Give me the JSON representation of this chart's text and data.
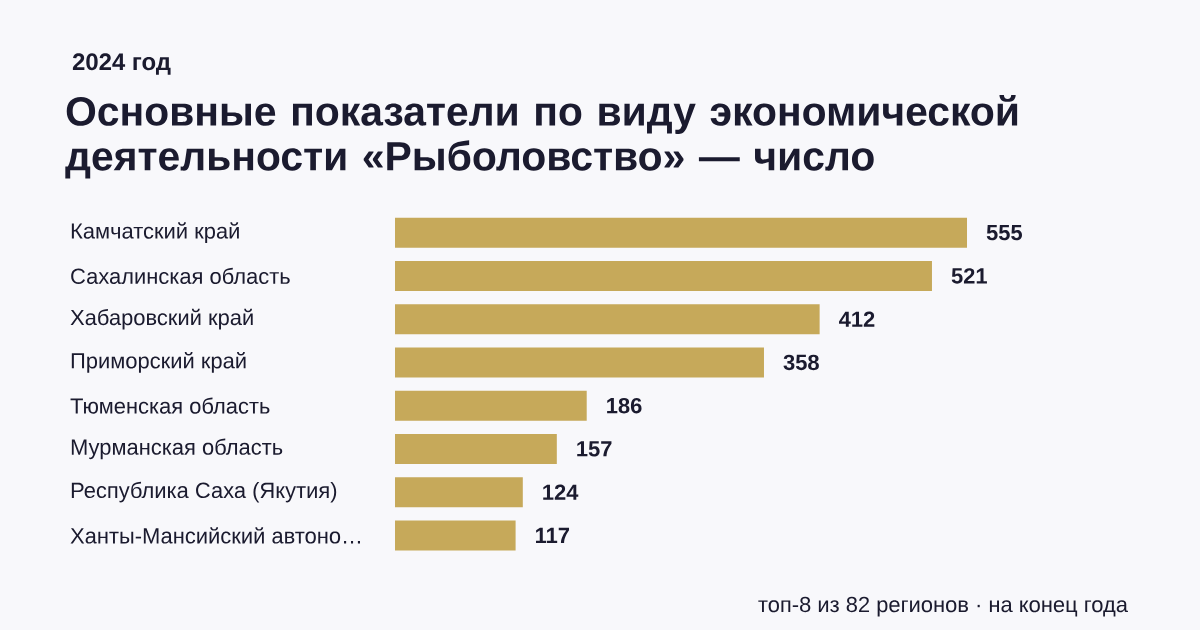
{
  "chart_data": {
    "type": "bar",
    "orientation": "horizontal",
    "title": "Основные показатели по виду экономической деятельности «Рыболовство» — число",
    "subtitle": "2024 год",
    "categories": [
      "Камчатский край",
      "Сахалинская область",
      "Хабаровский край",
      "Приморский край",
      "Тюменская область",
      "Мурманская область",
      "Республика Саха (Якутия)",
      "Ханты-Мансийский автоно…"
    ],
    "values": [
      555,
      521,
      412,
      358,
      186,
      157,
      124,
      117
    ],
    "color": "#c6a95a",
    "data_labels": true,
    "annotations": [
      "топ-8 из 82 регионов · на конец года"
    ]
  }
}
